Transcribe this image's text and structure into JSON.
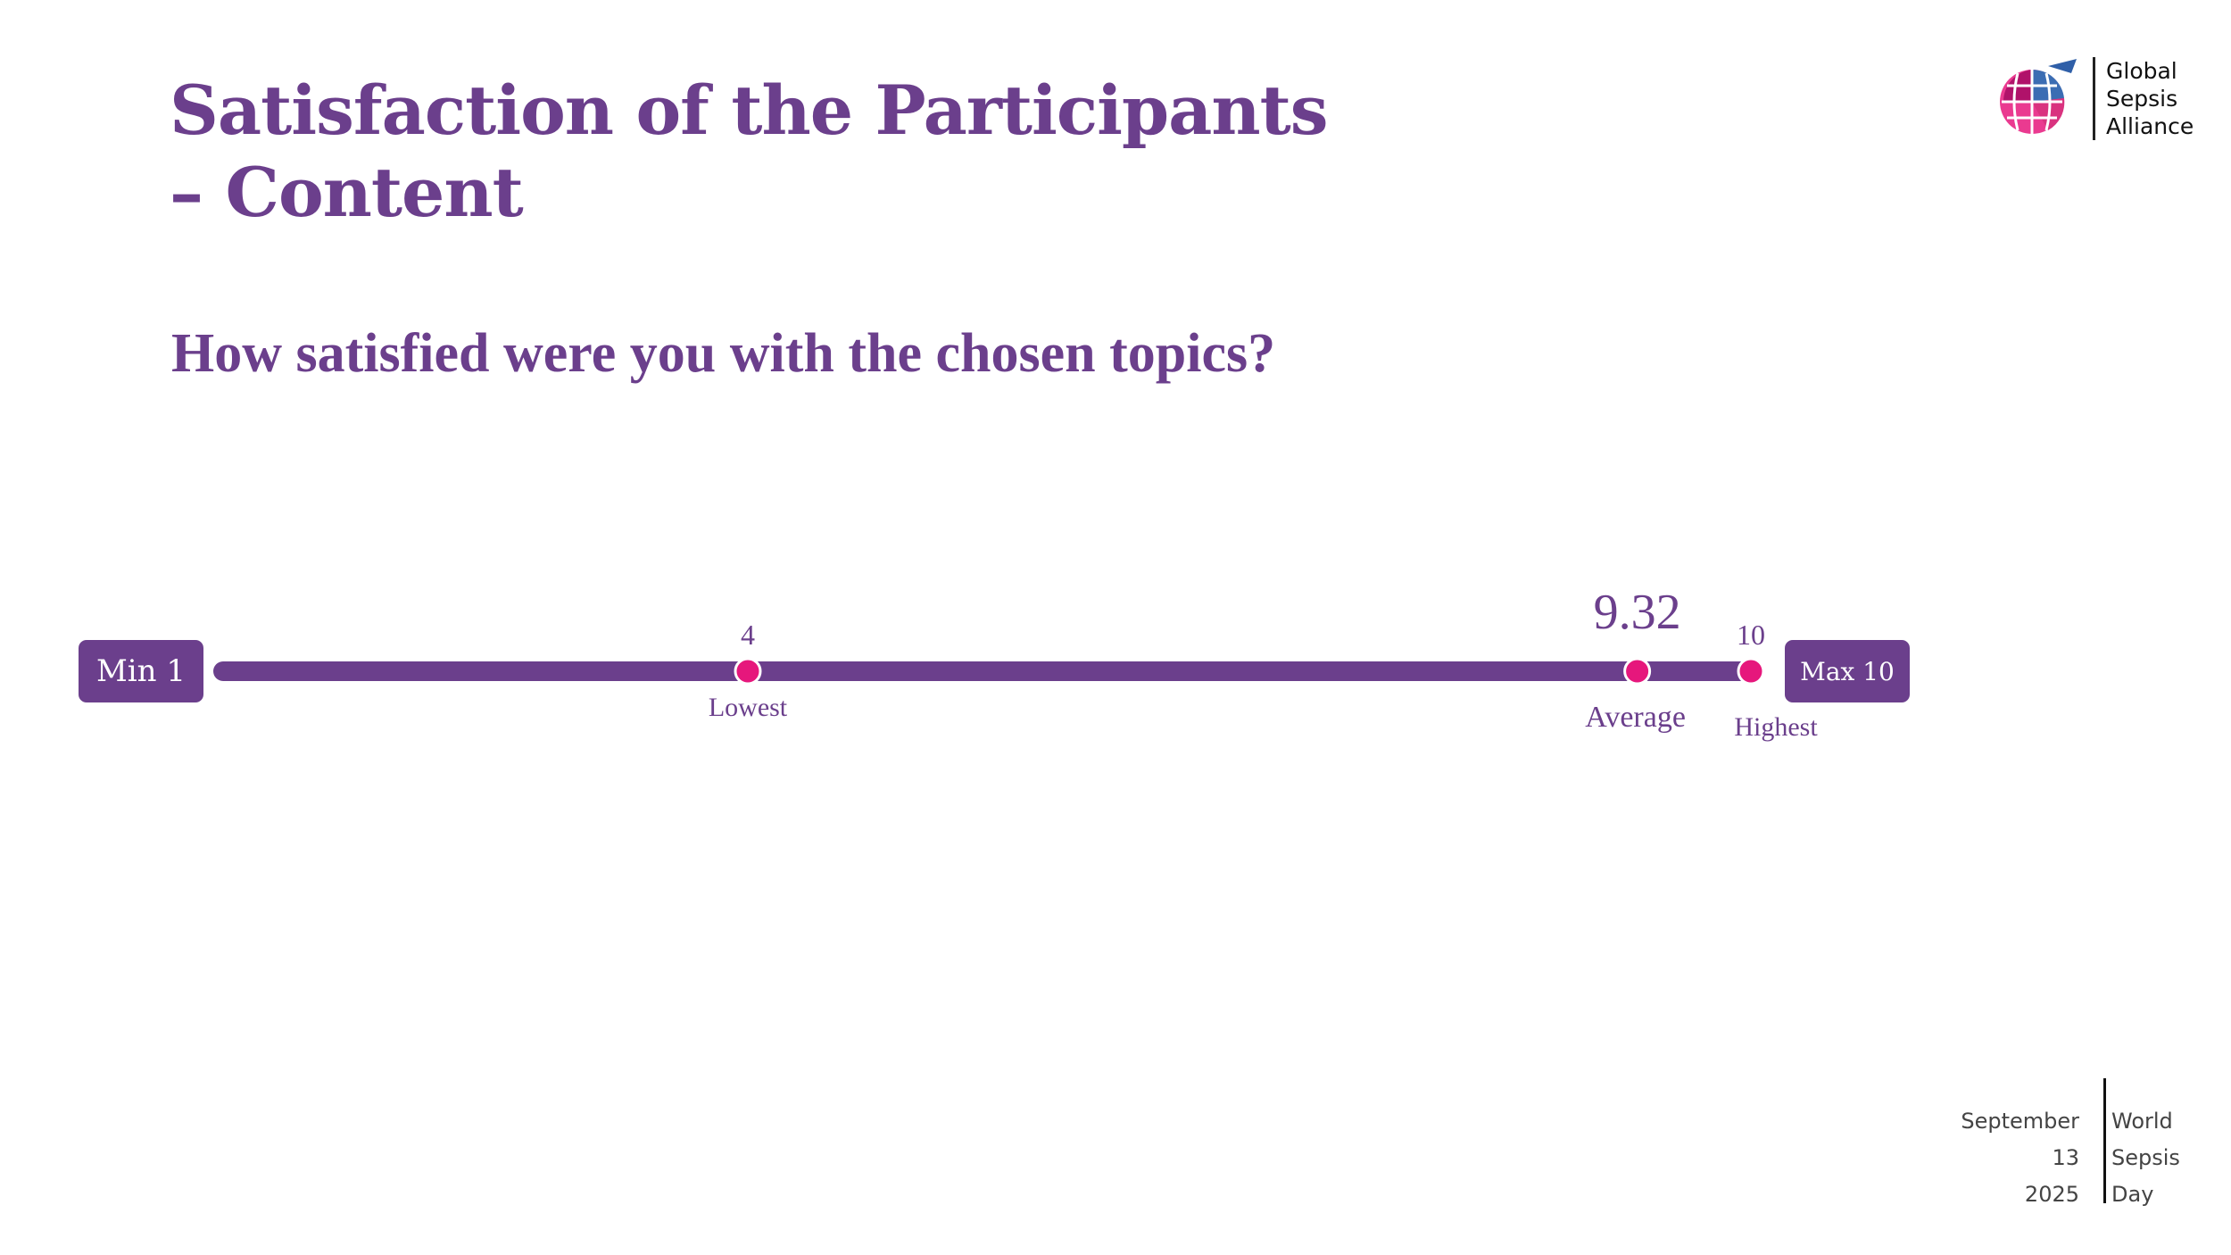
{
  "slide": {
    "title": "Satisfaction of the Participants – Content",
    "question": "How satisfied were you with the chosen topics?"
  },
  "logo": {
    "lines": [
      "Global",
      "Sepsis",
      "Alliance"
    ]
  },
  "footer": {
    "left": [
      "September",
      "13",
      "2025"
    ],
    "right": [
      "World",
      "Sepsis",
      "Day"
    ]
  },
  "colors": {
    "purple": "#6b3f8c",
    "magenta": "#e6177c"
  },
  "chart_data": {
    "type": "scale",
    "title": "How satisfied were you with the chosen topics?",
    "scale_min": 1,
    "scale_max": 10,
    "min_label": "Min 1",
    "max_label": "Max 10",
    "points": [
      {
        "name": "Lowest",
        "value": 4,
        "value_label": "4"
      },
      {
        "name": "Average",
        "value": 9.32,
        "value_label": "9.32"
      },
      {
        "name": "Highest",
        "value": 10,
        "value_label": "10"
      }
    ]
  }
}
